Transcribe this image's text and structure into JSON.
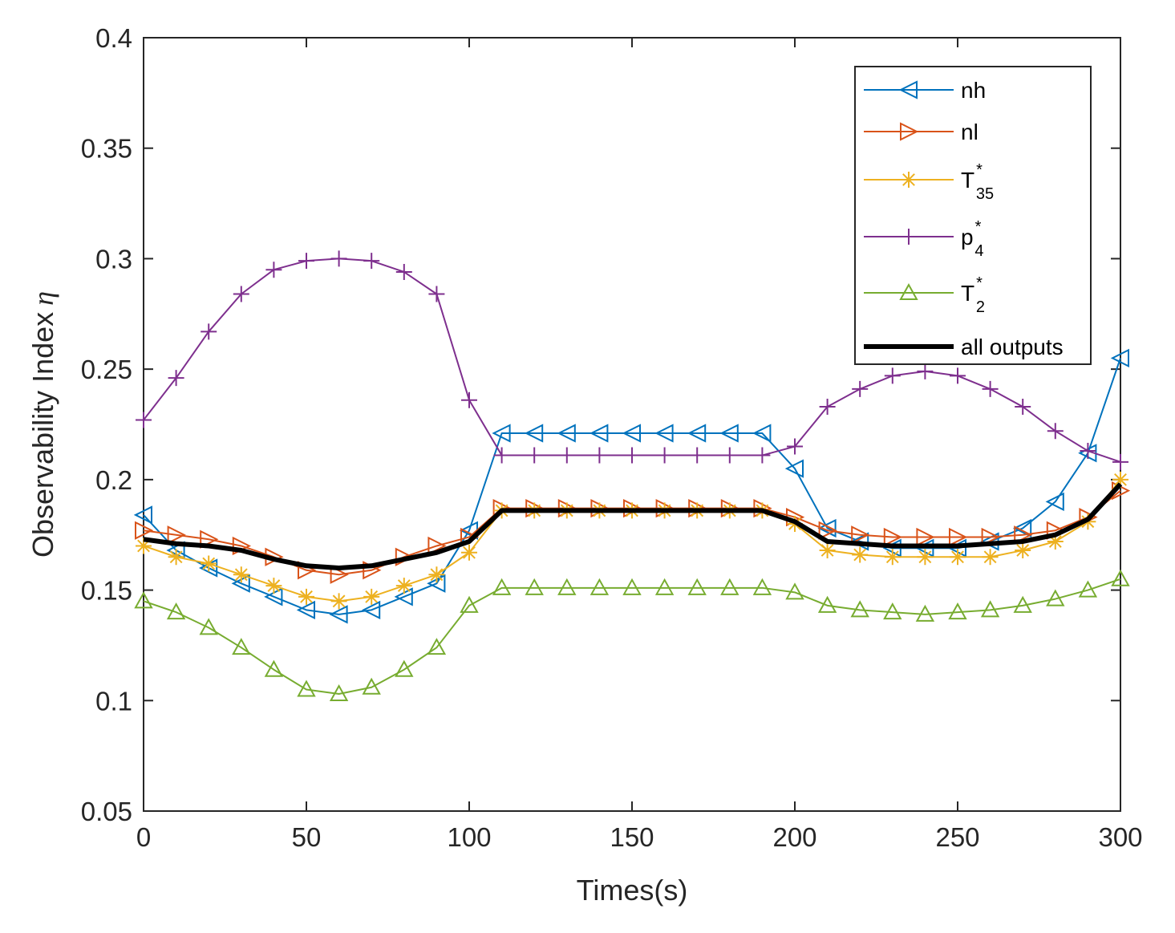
{
  "chart_data": {
    "type": "line",
    "title": "",
    "xlabel": "Times(s)",
    "ylabel": "Observability Index",
    "ylabel_symbol": "η",
    "xlim": [
      0,
      300
    ],
    "ylim": [
      0.05,
      0.4
    ],
    "xticks": [
      0,
      50,
      100,
      150,
      200,
      250,
      300
    ],
    "xtick_labels": [
      "0",
      "50",
      "100",
      "150",
      "200",
      "250",
      "300"
    ],
    "yticks": [
      0.05,
      0.1,
      0.15,
      0.2,
      0.25,
      0.3,
      0.35,
      0.4
    ],
    "ytick_labels": [
      "0.05",
      "0.1",
      "0.15",
      "0.2",
      "0.25",
      "0.3",
      "0.35",
      "0.4"
    ],
    "grid": false,
    "legend_position": "top-right",
    "x": [
      0,
      10,
      20,
      30,
      40,
      50,
      60,
      70,
      80,
      90,
      100,
      110,
      120,
      130,
      140,
      150,
      160,
      170,
      180,
      190,
      200,
      210,
      220,
      230,
      240,
      250,
      260,
      270,
      280,
      290,
      300
    ],
    "series": [
      {
        "name": "nh",
        "label_main": "nh",
        "label_sub": "",
        "label_sup": "",
        "color": "#0072BD",
        "marker": "triangle-left",
        "values": [
          0.184,
          0.168,
          0.16,
          0.153,
          0.147,
          0.141,
          0.139,
          0.141,
          0.147,
          0.153,
          0.177,
          0.221,
          0.221,
          0.221,
          0.221,
          0.221,
          0.221,
          0.221,
          0.221,
          0.221,
          0.205,
          0.178,
          0.172,
          0.169,
          0.169,
          0.169,
          0.172,
          0.178,
          0.19,
          0.212,
          0.255
        ]
      },
      {
        "name": "nl",
        "label_main": "nl",
        "label_sub": "",
        "label_sup": "",
        "color": "#D95319",
        "marker": "triangle-right",
        "values": [
          0.177,
          0.175,
          0.173,
          0.17,
          0.165,
          0.159,
          0.157,
          0.159,
          0.165,
          0.17,
          0.174,
          0.187,
          0.187,
          0.187,
          0.187,
          0.187,
          0.187,
          0.187,
          0.187,
          0.187,
          0.183,
          0.177,
          0.175,
          0.174,
          0.174,
          0.174,
          0.174,
          0.175,
          0.177,
          0.183,
          0.195
        ]
      },
      {
        "name": "T35*",
        "label_main": "T",
        "label_sub": "35",
        "label_sup": "*",
        "color": "#EDB120",
        "marker": "asterisk",
        "values": [
          0.17,
          0.165,
          0.162,
          0.157,
          0.152,
          0.147,
          0.145,
          0.147,
          0.152,
          0.157,
          0.167,
          0.186,
          0.186,
          0.186,
          0.186,
          0.186,
          0.186,
          0.186,
          0.186,
          0.186,
          0.18,
          0.168,
          0.166,
          0.165,
          0.165,
          0.165,
          0.165,
          0.168,
          0.172,
          0.181,
          0.2
        ]
      },
      {
        "name": "p4*",
        "label_main": "p",
        "label_sub": "4",
        "label_sup": "*",
        "color": "#7E2F8E",
        "marker": "plus",
        "values": [
          0.227,
          0.246,
          0.267,
          0.284,
          0.295,
          0.299,
          0.3,
          0.299,
          0.294,
          0.284,
          0.236,
          0.211,
          0.211,
          0.211,
          0.211,
          0.211,
          0.211,
          0.211,
          0.211,
          0.211,
          0.215,
          0.233,
          0.241,
          0.247,
          0.249,
          0.247,
          0.241,
          0.233,
          0.222,
          0.213,
          0.208
        ]
      },
      {
        "name": "T2*",
        "label_main": "T",
        "label_sub": "2",
        "label_sup": "*",
        "color": "#77AC30",
        "marker": "triangle-up",
        "values": [
          0.145,
          0.14,
          0.133,
          0.124,
          0.114,
          0.105,
          0.103,
          0.106,
          0.114,
          0.124,
          0.143,
          0.151,
          0.151,
          0.151,
          0.151,
          0.151,
          0.151,
          0.151,
          0.151,
          0.151,
          0.149,
          0.143,
          0.141,
          0.14,
          0.139,
          0.14,
          0.141,
          0.143,
          0.146,
          0.15,
          0.155
        ]
      },
      {
        "name": "all outputs",
        "label_main": "all outputs",
        "label_sub": "",
        "label_sup": "",
        "color": "#000000",
        "marker": "none",
        "thick": true,
        "values": [
          0.173,
          0.171,
          0.17,
          0.168,
          0.164,
          0.161,
          0.16,
          0.161,
          0.164,
          0.167,
          0.172,
          0.186,
          0.186,
          0.186,
          0.186,
          0.186,
          0.186,
          0.186,
          0.186,
          0.186,
          0.181,
          0.172,
          0.171,
          0.17,
          0.17,
          0.17,
          0.171,
          0.172,
          0.175,
          0.182,
          0.198
        ]
      }
    ]
  }
}
